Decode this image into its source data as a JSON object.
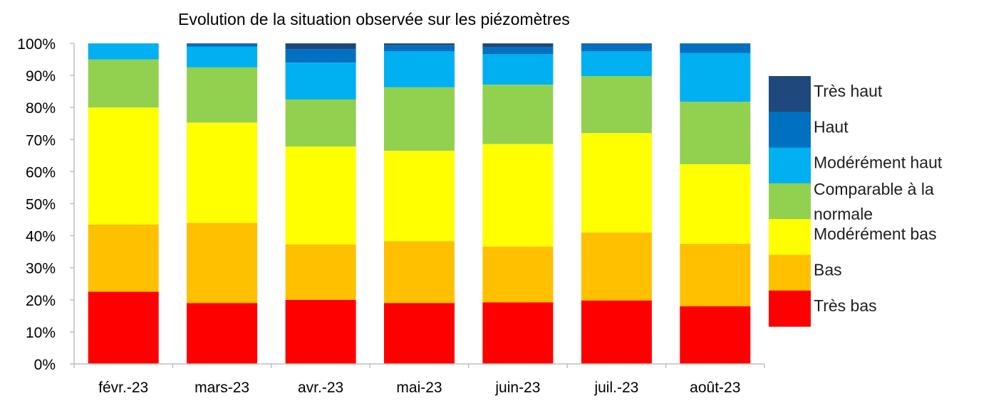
{
  "chart_data": {
    "type": "bar",
    "stacked": true,
    "title": "Evolution de la situation observée sur les  piézomètres",
    "xlabel": "",
    "ylabel": "",
    "ylim": [
      0,
      100
    ],
    "yticks": [
      "0%",
      "10%",
      "20%",
      "30%",
      "40%",
      "50%",
      "60%",
      "70%",
      "80%",
      "90%",
      "100%"
    ],
    "categories": [
      "févr.-23",
      "mars-23",
      "avr.-23",
      "mai-23",
      "juin-23",
      "juil.-23",
      "août-23"
    ],
    "legend_position": "right",
    "grid": false,
    "series": [
      {
        "name": "Très bas",
        "color": "#FF0000",
        "values": [
          22.5,
          19,
          20,
          19,
          19.2,
          19.8,
          18
        ]
      },
      {
        "name": "Bas",
        "color": "#FFC000",
        "values": [
          21,
          25,
          17.3,
          19.3,
          17.4,
          21.2,
          19.5
        ]
      },
      {
        "name": "Modérément bas",
        "color": "#FFFF00",
        "values": [
          36.5,
          31.3,
          30.5,
          28.2,
          32,
          31,
          24.8
        ]
      },
      {
        "name": "Comparable à la normale",
        "color": "#92D050",
        "values": [
          15,
          17.2,
          14.7,
          19.8,
          18.5,
          17.8,
          19.5
        ]
      },
      {
        "name": "Modérément haut",
        "color": "#00B0F0",
        "values": [
          5,
          6.5,
          11.5,
          11.2,
          9.5,
          7.7,
          15.2
        ]
      },
      {
        "name": "Haut",
        "color": "#0070C0",
        "values": [
          0,
          0.8,
          4.2,
          1.9,
          2.2,
          2.3,
          3
        ]
      },
      {
        "name": "Très haut",
        "color": "#1F497D",
        "values": [
          0,
          0.2,
          1.8,
          0.6,
          1.2,
          0.2,
          0
        ]
      }
    ]
  }
}
